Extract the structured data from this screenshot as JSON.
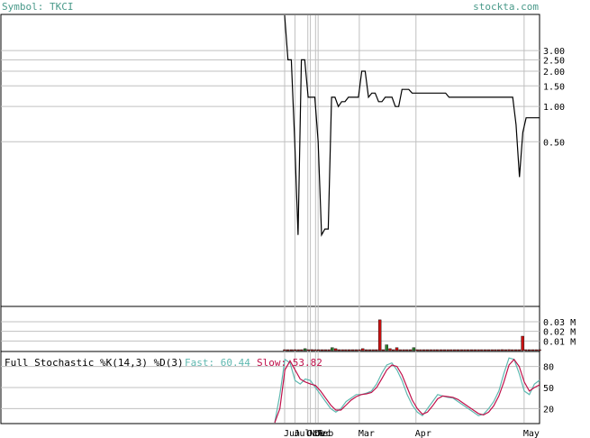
{
  "header": {
    "symbol_label": "Symbol: TKCI",
    "brand": "stockta.com"
  },
  "colors": {
    "header_text": "#4a9a8a",
    "price_line": "#000000",
    "volume_up": "#2e7d2e",
    "volume_down": "#cc1111",
    "fast_k": "#5fb8b0",
    "slow_d": "#c0104a",
    "grid": "#c0c0c0",
    "frame": "#000000"
  },
  "chart_data": [
    {
      "type": "line",
      "name": "price",
      "y_scale": "log",
      "ylim": [
        0.02,
        6
      ],
      "ytick_labels": [
        "3.00",
        "2.50",
        "2.00",
        "1.50",
        "1.00",
        "0.50"
      ],
      "ytick_values": [
        3.0,
        2.5,
        2.0,
        1.5,
        1.0,
        0.5
      ],
      "x_labels": [
        "Jun",
        "Jul",
        "Oct",
        "Nov",
        "Dec",
        "Feb",
        "Mar",
        "Apr",
        "May"
      ],
      "x_label_positions": [
        0,
        4,
        9,
        10,
        12,
        13,
        29,
        51,
        93
      ],
      "x_count": 100,
      "values": [
        6.0,
        2.5,
        2.5,
        0.5,
        0.08,
        2.5,
        2.5,
        1.2,
        1.2,
        1.2,
        0.5,
        0.08,
        0.09,
        0.09,
        1.2,
        1.2,
        1.0,
        1.1,
        1.1,
        1.2,
        1.2,
        1.2,
        1.2,
        2.0,
        2.0,
        1.2,
        1.3,
        1.3,
        1.1,
        1.1,
        1.2,
        1.2,
        1.2,
        1.0,
        1.0,
        1.4,
        1.4,
        1.4,
        1.3,
        1.3,
        1.3,
        1.3,
        1.3,
        1.3,
        1.3,
        1.3,
        1.3,
        1.3,
        1.3,
        1.2,
        1.2,
        1.2,
        1.2,
        1.2,
        1.2,
        1.2,
        1.2,
        1.2,
        1.2,
        1.2,
        1.2,
        1.2,
        1.2,
        1.2,
        1.2,
        1.2,
        1.2,
        1.2,
        1.2,
        0.7,
        0.25,
        0.6,
        0.8,
        0.8,
        0.8,
        0.8,
        0.8
      ]
    },
    {
      "type": "bar",
      "name": "volume",
      "ylim": [
        0,
        0.045
      ],
      "ytick_labels": [
        "0.03 M",
        "0.02 M",
        "0.01 M"
      ],
      "ytick_values": [
        0.03,
        0.02,
        0.01
      ],
      "up_index": [
        6,
        14,
        30,
        38
      ],
      "values": [
        0,
        0,
        0,
        0,
        0,
        0,
        0.002,
        0,
        0.001,
        0,
        0,
        0,
        0,
        0,
        0.003,
        0.002,
        0,
        0,
        0,
        0,
        0,
        0,
        0,
        0.002,
        0,
        0,
        0,
        0,
        0.032,
        0,
        0.006,
        0.002,
        0,
        0.003,
        0,
        0,
        0,
        0,
        0.003,
        0,
        0,
        0,
        0,
        0,
        0,
        0,
        0,
        0,
        0,
        0,
        0,
        0,
        0,
        0,
        0,
        0,
        0,
        0,
        0,
        0,
        0,
        0,
        0,
        0,
        0.001,
        0,
        0.001,
        0,
        0,
        0,
        0.015,
        0,
        0,
        0,
        0,
        0
      ]
    },
    {
      "type": "line",
      "name": "stochastic",
      "title": "Full Stochastic %K(14,3) %D(3)",
      "fast_label": "Fast: 60.44",
      "slow_label": "Slow: 53.82",
      "ylim": [
        0,
        100
      ],
      "ytick_labels": [
        "80",
        "50",
        "20"
      ],
      "ytick_values": [
        80,
        50,
        20
      ],
      "series": [
        {
          "name": "Fast",
          "values": [
            0,
            40,
            90,
            85,
            60,
            55,
            62,
            60,
            50,
            40,
            30,
            20,
            15,
            20,
            30,
            35,
            40,
            40,
            42,
            45,
            55,
            70,
            82,
            85,
            75,
            60,
            40,
            25,
            15,
            10,
            20,
            30,
            40,
            38,
            36,
            35,
            30,
            25,
            20,
            15,
            10,
            12,
            20,
            30,
            45,
            70,
            92,
            90,
            70,
            45,
            40,
            55,
            60.44
          ]
        },
        {
          "name": "Slow",
          "values": [
            0,
            20,
            75,
            88,
            75,
            62,
            58,
            55,
            53,
            45,
            35,
            25,
            18,
            18,
            25,
            32,
            37,
            40,
            41,
            43,
            50,
            62,
            75,
            82,
            80,
            68,
            50,
            32,
            20,
            12,
            15,
            24,
            34,
            38,
            37,
            36,
            33,
            28,
            23,
            18,
            13,
            11,
            15,
            24,
            38,
            58,
            82,
            90,
            80,
            58,
            45,
            50,
            53.82
          ]
        }
      ]
    }
  ]
}
